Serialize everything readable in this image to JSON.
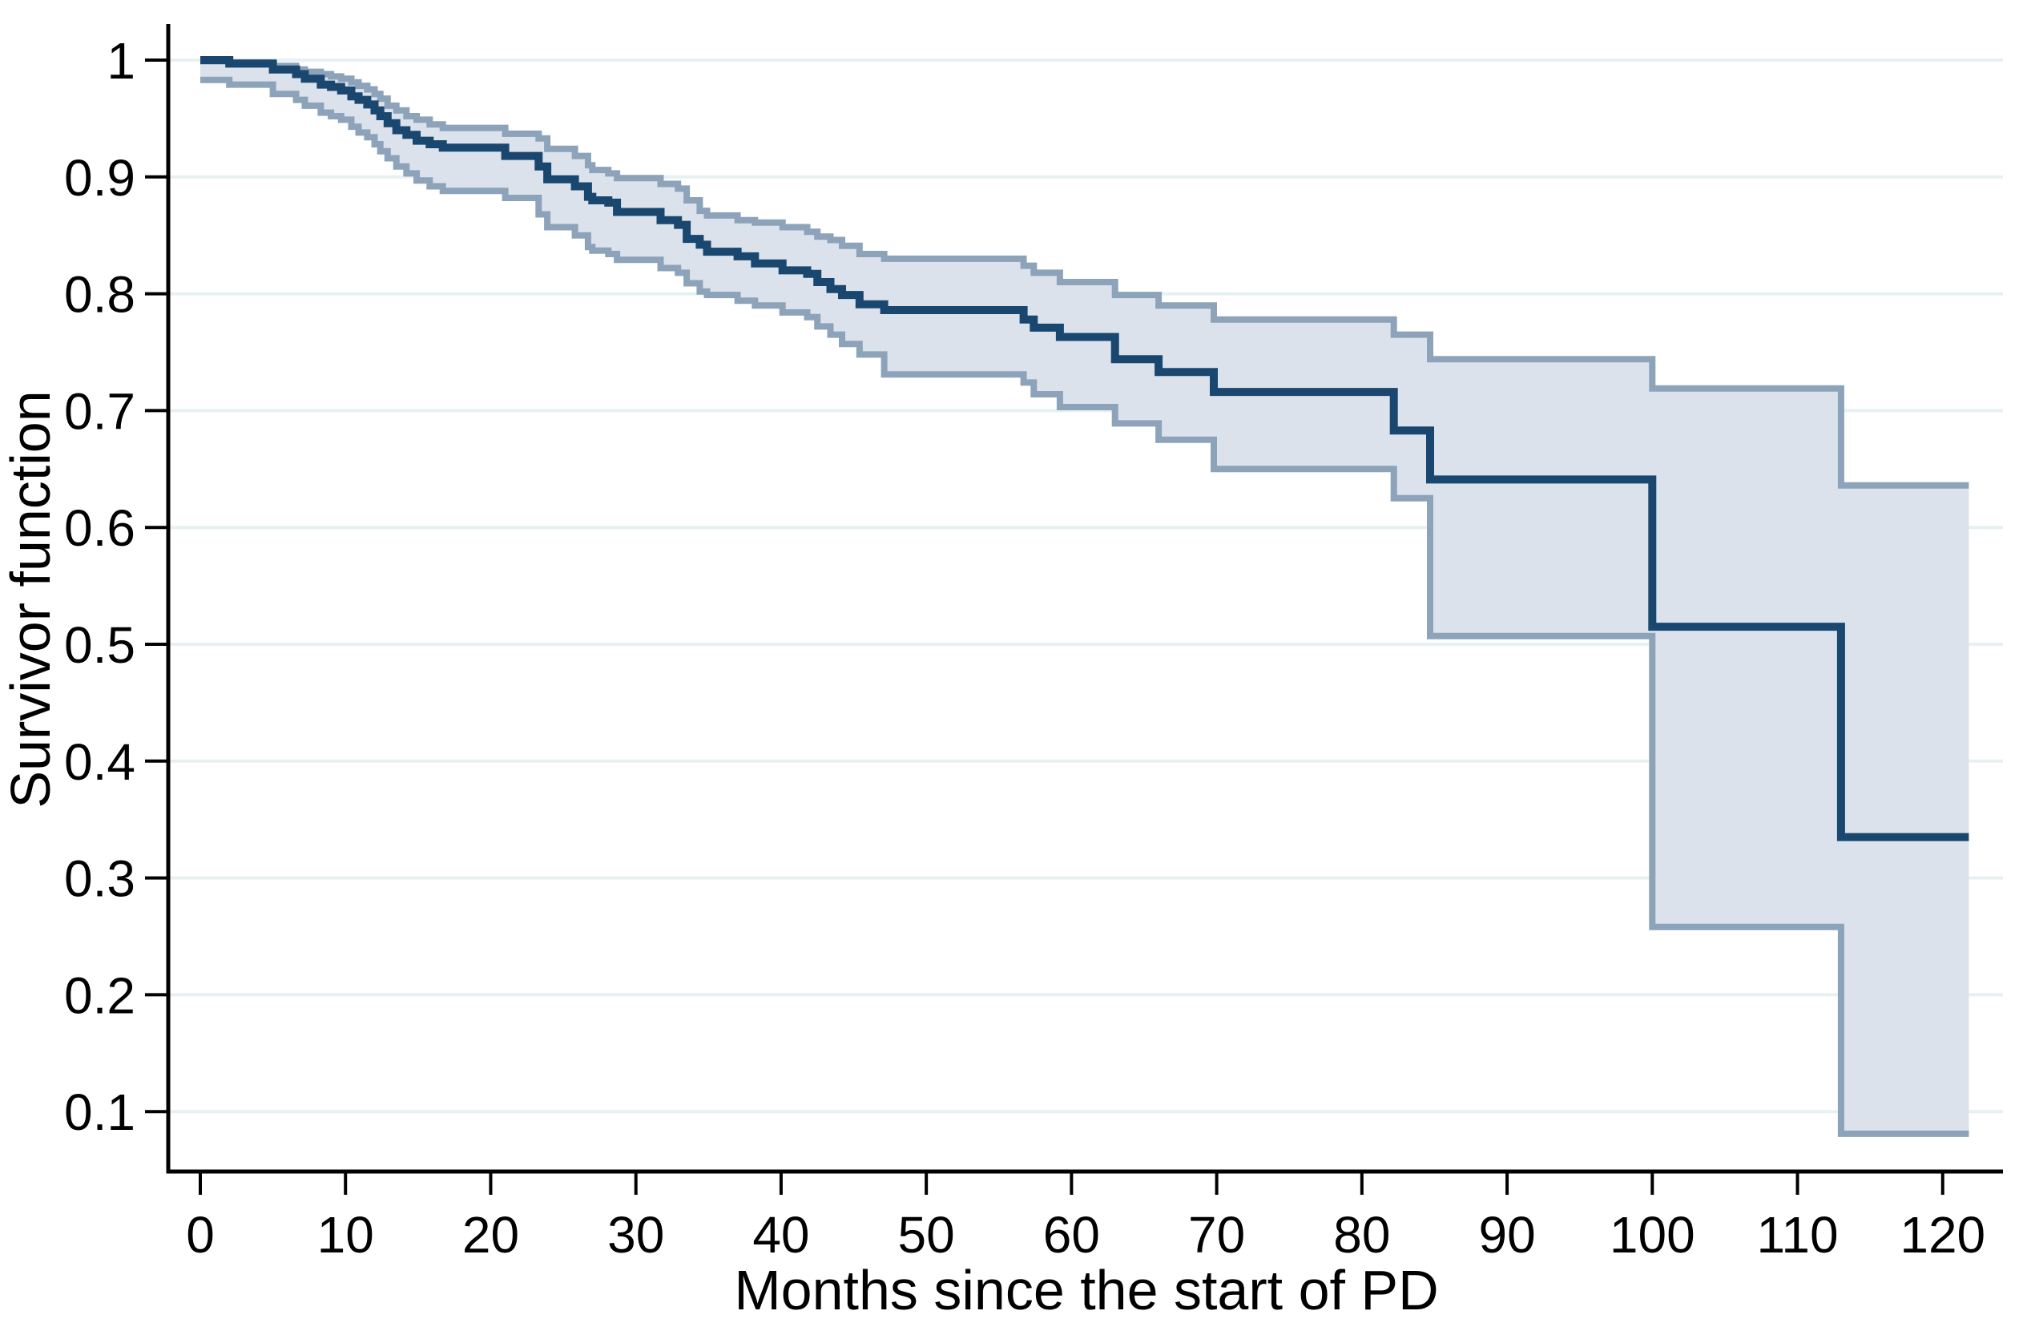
{
  "figure": {
    "background": "#ffffff"
  },
  "chart_data": {
    "type": "line",
    "subtype": "kaplan-meier-step-with-confidence-band",
    "title": "",
    "xlabel": "Months since the start of PD",
    "ylabel": "Survivor function",
    "xlim": [
      0,
      124
    ],
    "ylim": [
      0.033,
      1.03
    ],
    "x_end": 121.8,
    "grid": "horizontal",
    "legend": "none",
    "xticks": [
      0,
      10,
      20,
      30,
      40,
      50,
      60,
      70,
      80,
      90,
      100,
      110,
      120
    ],
    "xtick_labels": [
      "0",
      "10",
      "20",
      "30",
      "40",
      "50",
      "60",
      "70",
      "80",
      "90",
      "100",
      "110",
      "120"
    ],
    "yticks": [
      1,
      0.9,
      0.8,
      0.7,
      0.6,
      0.5,
      0.4,
      0.3,
      0.2,
      0.1
    ],
    "ytick_labels": [
      "1",
      "0.9",
      "0.8",
      "0.7",
      "0.6",
      "0.5",
      "0.4",
      "0.3",
      "0.2",
      "0.1"
    ],
    "x": [
      0,
      2,
      5,
      6.6,
      7.2,
      8.3,
      9,
      9.7,
      10.4,
      10.9,
      11.5,
      12,
      12.4,
      12.9,
      13.5,
      14.2,
      14.9,
      15.8,
      16.7,
      21,
      23.3,
      23.9,
      25.8,
      26.7,
      27,
      28.1,
      28.7,
      31.7,
      32.9,
      33.5,
      34.4,
      34.9,
      37,
      38.2,
      40.1,
      41.8,
      42.5,
      43.4,
      44.2,
      45.4,
      47.1,
      56.7,
      57.4,
      59.2,
      63,
      66,
      69.8,
      82.2,
      84.7,
      100,
      113
    ],
    "series": [
      {
        "name": "survivor-estimate",
        "values": [
          1.0,
          0.997,
          0.992,
          0.988,
          0.984,
          0.979,
          0.977,
          0.974,
          0.969,
          0.966,
          0.962,
          0.957,
          0.952,
          0.946,
          0.94,
          0.936,
          0.931,
          0.928,
          0.925,
          0.918,
          0.909,
          0.898,
          0.892,
          0.883,
          0.88,
          0.878,
          0.87,
          0.863,
          0.859,
          0.847,
          0.842,
          0.836,
          0.832,
          0.826,
          0.82,
          0.817,
          0.81,
          0.804,
          0.799,
          0.791,
          0.786,
          0.778,
          0.771,
          0.763,
          0.744,
          0.733,
          0.716,
          0.683,
          0.641,
          0.515,
          0.335
        ]
      },
      {
        "name": "ci-upper",
        "values": [
          0.999,
          0.998,
          0.995,
          0.992,
          0.99,
          0.988,
          0.986,
          0.984,
          0.981,
          0.978,
          0.975,
          0.971,
          0.967,
          0.961,
          0.957,
          0.952,
          0.949,
          0.945,
          0.942,
          0.937,
          0.933,
          0.924,
          0.918,
          0.91,
          0.906,
          0.903,
          0.899,
          0.894,
          0.89,
          0.88,
          0.871,
          0.867,
          0.863,
          0.861,
          0.857,
          0.853,
          0.849,
          0.846,
          0.841,
          0.834,
          0.83,
          0.824,
          0.818,
          0.81,
          0.799,
          0.79,
          0.778,
          0.765,
          0.744,
          0.719,
          0.636
        ]
      },
      {
        "name": "ci-lower",
        "values": [
          0.983,
          0.979,
          0.971,
          0.966,
          0.961,
          0.955,
          0.952,
          0.949,
          0.943,
          0.938,
          0.934,
          0.928,
          0.922,
          0.916,
          0.909,
          0.903,
          0.897,
          0.892,
          0.888,
          0.882,
          0.868,
          0.857,
          0.85,
          0.84,
          0.837,
          0.834,
          0.829,
          0.822,
          0.818,
          0.809,
          0.802,
          0.799,
          0.794,
          0.79,
          0.784,
          0.78,
          0.772,
          0.765,
          0.757,
          0.748,
          0.731,
          0.724,
          0.714,
          0.703,
          0.689,
          0.675,
          0.65,
          0.625,
          0.507,
          0.258,
          0.081
        ]
      }
    ],
    "colors": {
      "estimate_line": "#1a476f",
      "ci_edge_line": "#8ca3b9",
      "ci_fill": "#dbe2ec",
      "gridline": "#e7f1f2",
      "axis": "#000000",
      "text": "#000000"
    }
  }
}
